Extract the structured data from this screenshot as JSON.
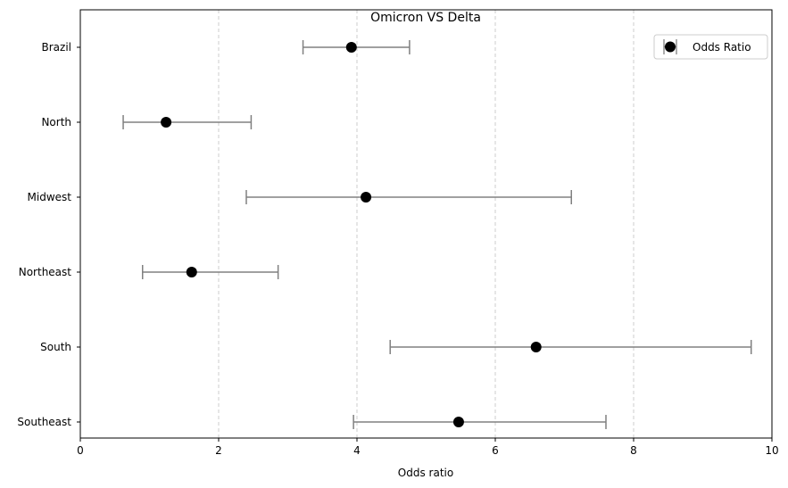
{
  "chart_data": {
    "type": "scatter",
    "title": "Omicron VS Delta",
    "xlabel": "Odds ratio",
    "ylabel": "",
    "xlim": [
      0,
      10
    ],
    "xticks": [
      0,
      2,
      4,
      6,
      8,
      10
    ],
    "grid": "x-dashed",
    "legend_position": "top-right",
    "legend": [
      "Odds Ratio"
    ],
    "categories": [
      "Brazil",
      "North",
      "Midwest",
      "Northeast",
      "South",
      "Southeast"
    ],
    "series": [
      {
        "name": "Odds Ratio",
        "values": [
          3.92,
          1.24,
          4.13,
          1.61,
          6.59,
          5.47
        ],
        "ci_low": [
          3.22,
          0.62,
          2.4,
          0.9,
          4.48,
          3.95
        ],
        "ci_high": [
          4.76,
          2.47,
          7.1,
          2.86,
          9.7,
          7.6
        ]
      }
    ],
    "colors": {
      "point": "#000000",
      "errorbar": "#808080",
      "grid": "#cccccc"
    }
  }
}
